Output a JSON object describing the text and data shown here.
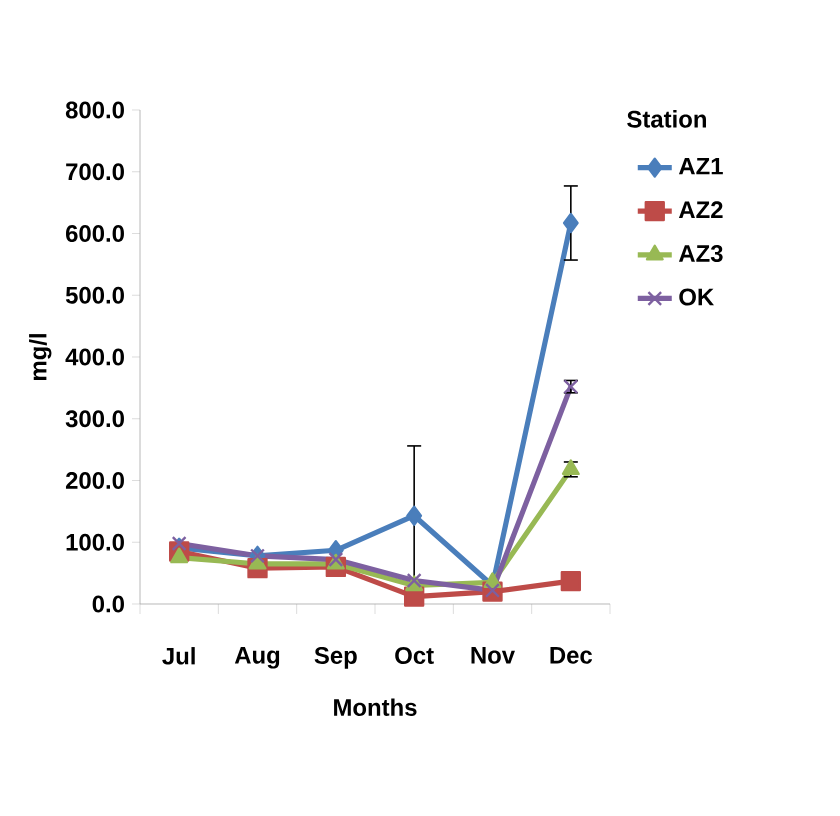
{
  "chart_data": {
    "type": "line",
    "xlabel": "Months",
    "ylabel": "mg/l",
    "legend_title": "Station",
    "categories": [
      "Jul",
      "Aug",
      "Sep",
      "Oct",
      "Nov",
      "Dec"
    ],
    "ylim": [
      0,
      800
    ],
    "yticks": [
      {
        "value": 0,
        "label": "0.0"
      },
      {
        "value": 100,
        "label": "100.0"
      },
      {
        "value": 200,
        "label": "200.0"
      },
      {
        "value": 300,
        "label": "300.0"
      },
      {
        "value": 400,
        "label": "400.0"
      },
      {
        "value": 500,
        "label": "500.0"
      },
      {
        "value": 600,
        "label": "600.0"
      },
      {
        "value": 700,
        "label": "700.0"
      },
      {
        "value": 800,
        "label": "800.0"
      }
    ],
    "legend": "right",
    "grid": false,
    "series": [
      {
        "name": "AZ1",
        "color": "#4a7ebb",
        "marker": "diamond",
        "values": [
          91,
          78,
          87,
          143,
          30,
          617
        ],
        "errors": [
          null,
          null,
          null,
          113,
          null,
          60
        ]
      },
      {
        "name": "AZ2",
        "color": "#be4b48",
        "marker": "square",
        "values": [
          85,
          58,
          60,
          12,
          20,
          37
        ],
        "errors": [
          null,
          null,
          null,
          null,
          null,
          null
        ]
      },
      {
        "name": "AZ3",
        "color": "#98b954",
        "marker": "triangle",
        "values": [
          75,
          65,
          65,
          30,
          35,
          218
        ],
        "errors": [
          null,
          null,
          null,
          null,
          null,
          12
        ]
      },
      {
        "name": "OK",
        "color": "#7d60a0",
        "marker": "cross",
        "values": [
          98,
          78,
          72,
          38,
          22,
          352
        ],
        "errors": [
          null,
          null,
          null,
          null,
          null,
          10
        ]
      }
    ]
  }
}
